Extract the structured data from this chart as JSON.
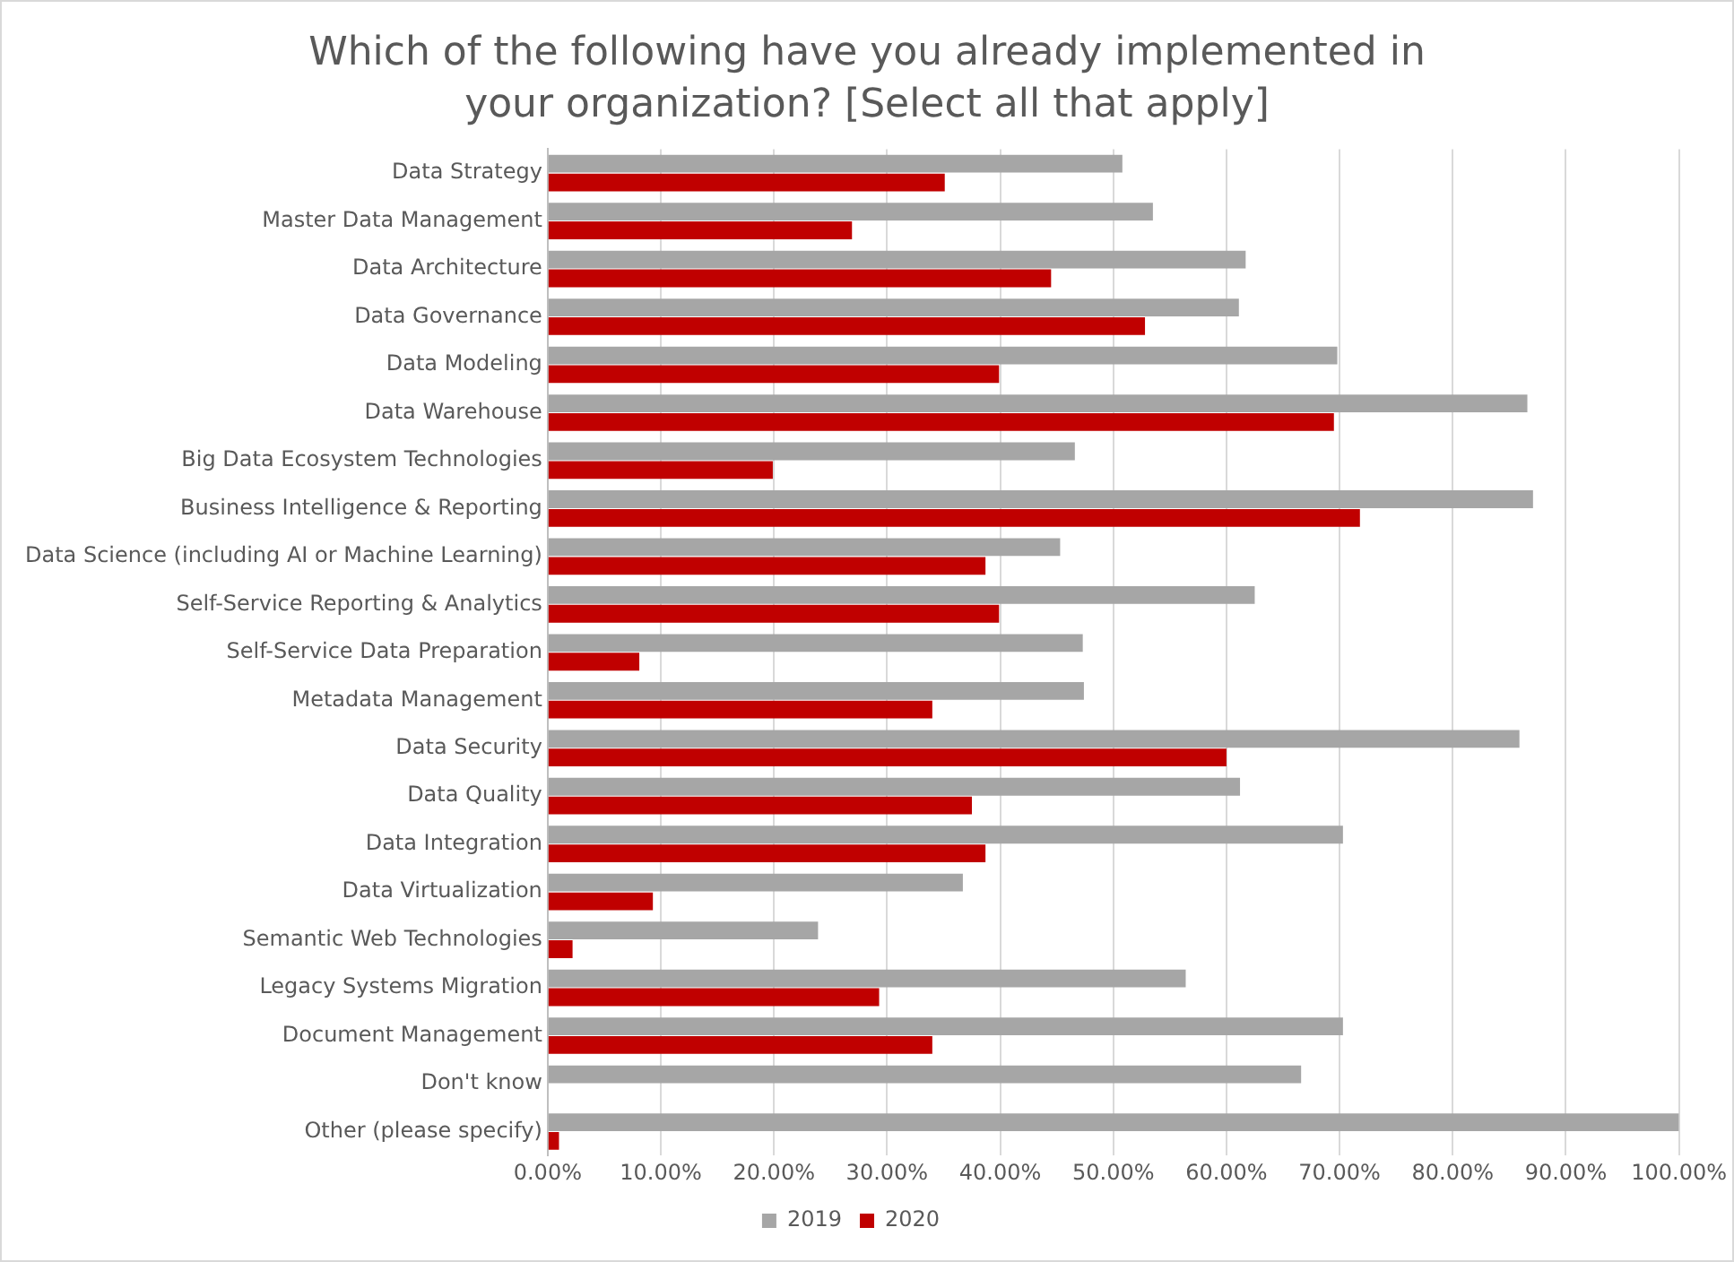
{
  "chart_data": {
    "type": "bar",
    "orientation": "horizontal",
    "title": "Which of the following have you already implemented in your organization?  [Select all that apply]",
    "categories": [
      "Data Strategy",
      "Master Data Management",
      "Data Architecture",
      "Data Governance",
      "Data Modeling",
      "Data Warehouse",
      "Big Data Ecosystem Technologies",
      "Business Intelligence & Reporting",
      "Data Science (including AI or Machine Learning)",
      "Self-Service Reporting & Analytics",
      "Self-Service Data Preparation",
      "Metadata Management",
      "Data Security",
      "Data Quality",
      "Data Integration",
      "Data Virtualization",
      "Semantic Web Technologies",
      "Legacy Systems Migration",
      "Document Management",
      "Don't know",
      "Other (please specify)"
    ],
    "series": [
      {
        "name": "2019",
        "color": "#a6a6a6",
        "values": [
          50.8,
          53.5,
          61.7,
          61.1,
          69.8,
          86.6,
          46.6,
          87.1,
          45.3,
          62.5,
          47.3,
          47.4,
          85.9,
          61.2,
          70.3,
          36.7,
          23.9,
          56.4,
          70.3,
          66.6,
          100
        ]
      },
      {
        "name": "2020",
        "color": "#c00000",
        "values": [
          35.1,
          26.9,
          44.5,
          52.8,
          39.9,
          69.5,
          19.9,
          71.8,
          38.7,
          39.9,
          8.1,
          34.0,
          60.0,
          37.5,
          38.7,
          9.3,
          2.2,
          29.3,
          34.0,
          null,
          1.0
        ]
      }
    ],
    "xlim": [
      0,
      100
    ],
    "xticks": [
      {
        "value": 0,
        "label": "0.00%"
      },
      {
        "value": 10,
        "label": "10.00%"
      },
      {
        "value": 20,
        "label": "20.00%"
      },
      {
        "value": 30,
        "label": "30.00%"
      },
      {
        "value": 40,
        "label": "40.00%"
      },
      {
        "value": 50,
        "label": "50.00%"
      },
      {
        "value": 60,
        "label": "60.00%"
      },
      {
        "value": 70,
        "label": "70.00%"
      },
      {
        "value": 80,
        "label": "80.00%"
      },
      {
        "value": 90,
        "label": "90.00%"
      },
      {
        "value": 100,
        "label": "100.00%"
      }
    ],
    "grid": "x",
    "legend": "bottom"
  }
}
